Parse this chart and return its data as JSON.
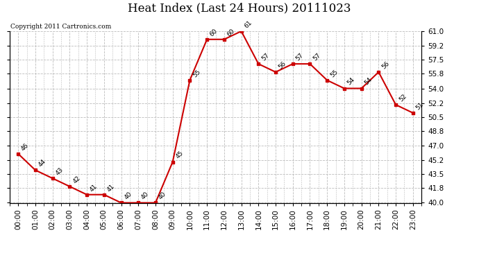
{
  "title": "Heat Index (Last 24 Hours) 20111023",
  "copyright": "Copyright 2011 Cartronics.com",
  "x_labels": [
    "00:00",
    "01:00",
    "02:00",
    "03:00",
    "04:00",
    "05:00",
    "06:00",
    "07:00",
    "08:00",
    "09:00",
    "10:00",
    "11:00",
    "12:00",
    "13:00",
    "14:00",
    "15:00",
    "16:00",
    "17:00",
    "18:00",
    "19:00",
    "20:00",
    "21:00",
    "22:00",
    "23:00"
  ],
  "y_values": [
    46,
    44,
    43,
    42,
    41,
    41,
    40,
    40,
    40,
    45,
    55,
    60,
    60,
    61,
    57,
    56,
    57,
    57,
    55,
    54,
    54,
    56,
    52,
    51
  ],
  "ylim_min": 40.0,
  "ylim_max": 61.0,
  "y_ticks": [
    40.0,
    41.8,
    43.5,
    45.2,
    47.0,
    48.8,
    50.5,
    52.2,
    54.0,
    55.8,
    57.5,
    59.2,
    61.0
  ],
  "line_color": "#cc0000",
  "marker": "s",
  "marker_size": 3,
  "bg_color": "#ffffff",
  "grid_color": "#bbbbbb",
  "title_fontsize": 12,
  "annotation_fontsize": 6.5,
  "tick_fontsize": 7.5,
  "copyright_fontsize": 6.5
}
